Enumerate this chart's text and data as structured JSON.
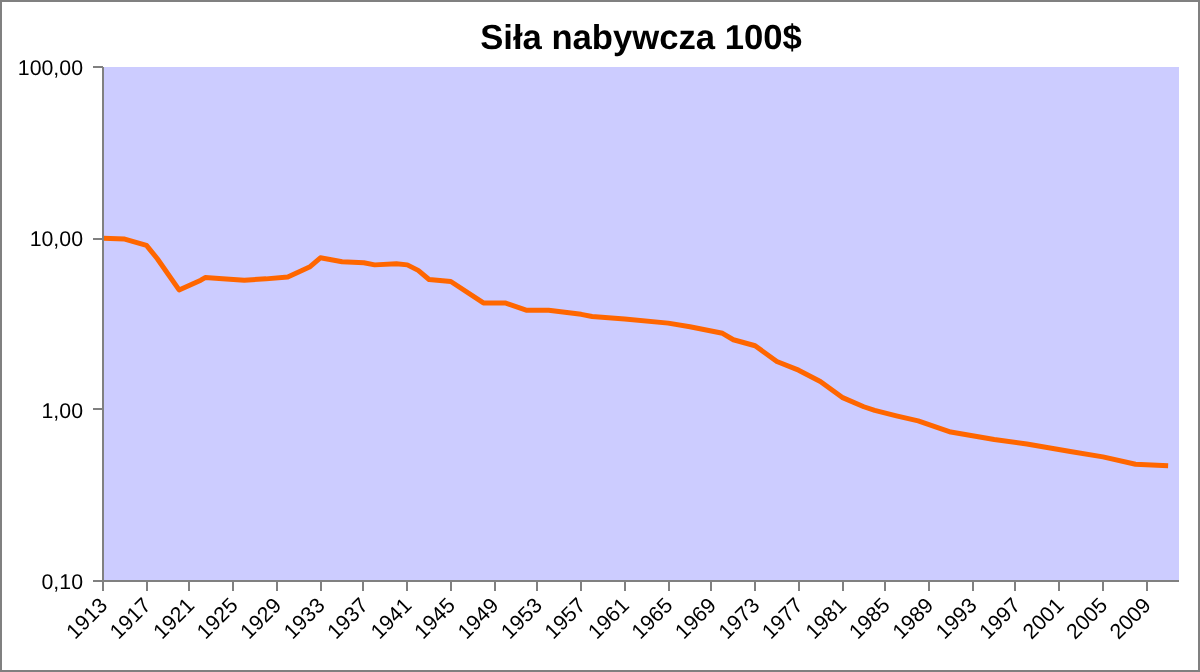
{
  "chart_data": {
    "type": "line",
    "title": "Siła nabywcza 100$",
    "log": "y",
    "grid": false,
    "marker": "none",
    "line_style": "solid",
    "x": [
      1913,
      1915,
      1917,
      1918,
      1920,
      1922,
      1922.4,
      1924,
      1926,
      1928,
      1930,
      1932,
      1933,
      1935,
      1937,
      1938,
      1940,
      1941,
      1942,
      1943,
      1945,
      1948,
      1950,
      1952,
      1954,
      1957,
      1958,
      1961,
      1965,
      1967,
      1970,
      1971,
      1973,
      1975,
      1977,
      1979,
      1981,
      1983,
      1984,
      1986,
      1988,
      1991,
      1995,
      1998,
      2000,
      2002,
      2005,
      2008,
      2011
    ],
    "series": [
      {
        "color": "#ff6600",
        "values": [
          10.0,
          9.9,
          9.1,
          7.6,
          5.0,
          5.7,
          5.9,
          5.8,
          5.7,
          5.8,
          5.95,
          6.8,
          7.7,
          7.3,
          7.2,
          7.0,
          7.1,
          7.0,
          6.5,
          5.75,
          5.6,
          4.2,
          4.2,
          3.8,
          3.8,
          3.6,
          3.5,
          3.38,
          3.2,
          3.05,
          2.79,
          2.56,
          2.36,
          1.91,
          1.7,
          1.46,
          1.18,
          1.04,
          0.99,
          0.92,
          0.86,
          0.74,
          0.67,
          0.63,
          0.6,
          0.57,
          0.53,
          0.48,
          0.47
        ]
      }
    ],
    "xlim": [
      1913,
      2012
    ],
    "xticks": [
      1913,
      1917,
      1921,
      1925,
      1929,
      1933,
      1937,
      1941,
      1945,
      1949,
      1953,
      1957,
      1961,
      1965,
      1969,
      1973,
      1977,
      1981,
      1985,
      1989,
      1993,
      1997,
      2001,
      2005,
      2009
    ],
    "ylim": [
      0.1,
      100
    ],
    "yticks": [
      {
        "value": 0.1,
        "label": "0,10"
      },
      {
        "value": 1,
        "label": "1,00"
      },
      {
        "value": 10,
        "label": "10,00"
      },
      {
        "value": 100,
        "label": "100,00"
      }
    ]
  }
}
